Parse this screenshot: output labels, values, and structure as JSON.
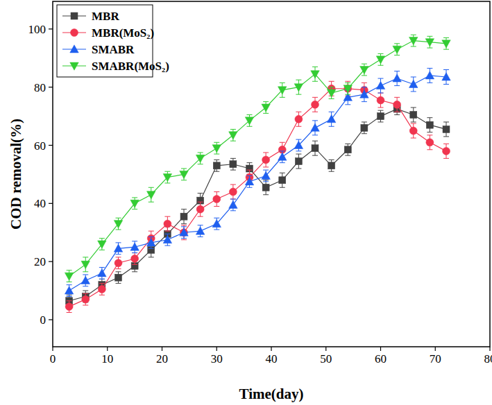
{
  "chart_data": {
    "type": "line",
    "x_label": "Time(day)",
    "y_label": "COD removal(%)",
    "x": [
      3,
      6,
      9,
      12,
      15,
      18,
      21,
      24,
      27,
      30,
      33,
      36,
      39,
      42,
      45,
      48,
      51,
      54,
      57,
      60,
      63,
      66,
      69,
      72
    ],
    "xlim": [
      0,
      80
    ],
    "xticks": [
      0,
      10,
      20,
      30,
      40,
      50,
      60,
      70,
      80
    ],
    "ylim": [
      -9.3,
      109.5
    ],
    "yticks": [
      0,
      20,
      40,
      60,
      80,
      100
    ],
    "grid": false,
    "legend": "upper left",
    "series": [
      {
        "name": "MBR",
        "color": "#404040",
        "marker": "square",
        "values": [
          6.5,
          8,
          12,
          14.5,
          18.5,
          24,
          29.5,
          35.5,
          41,
          53,
          53.5,
          52,
          45.5,
          48,
          54.5,
          59,
          53,
          58.5,
          66,
          70,
          72.5,
          70.5,
          67,
          65.5
        ],
        "errors": [
          2,
          2,
          2,
          2,
          2,
          2.5,
          2.5,
          2.5,
          2.5,
          2,
          2,
          2,
          2.5,
          2.5,
          2.5,
          2.5,
          2,
          2,
          2,
          2,
          2,
          2.5,
          2.5,
          2.5
        ]
      },
      {
        "name": "MBR(MoS₂)",
        "color": "#f0354f",
        "marker": "circle",
        "values": [
          4.5,
          7,
          10.5,
          19.5,
          21,
          28,
          33,
          30,
          38,
          41.5,
          44,
          49,
          55,
          58.5,
          69,
          74,
          79.5,
          79.5,
          79,
          75.5,
          74,
          65,
          61,
          58
        ],
        "errors": [
          2,
          2,
          2,
          2,
          2,
          2.5,
          2.5,
          2.5,
          2.5,
          2.5,
          2.5,
          2.5,
          2.5,
          2.5,
          2.5,
          2.5,
          2.5,
          2.5,
          2.5,
          2.5,
          2.5,
          2.5,
          2.5,
          2.5
        ]
      },
      {
        "name": "SMABR",
        "color": "#1f5fef",
        "marker": "triangle",
        "values": [
          10,
          13.5,
          16,
          24.5,
          25,
          26.5,
          27.5,
          30,
          30.5,
          33,
          39.5,
          47.5,
          49.5,
          56,
          60,
          66,
          69,
          76.5,
          77.5,
          80.5,
          83,
          81,
          84,
          83.5
        ],
        "errors": [
          2,
          2,
          2,
          2,
          2,
          2,
          2,
          2,
          2,
          2,
          2,
          2,
          2,
          2,
          2,
          2.5,
          2.5,
          2.5,
          2.5,
          2.5,
          2.5,
          2.5,
          2.5,
          2.5
        ]
      },
      {
        "name": "SMABR(MoS₂)",
        "color": "#33cc33",
        "marker": "triangle-down",
        "values": [
          15,
          19,
          26,
          33,
          40,
          43,
          49,
          50,
          55.5,
          59,
          63.5,
          68.5,
          73,
          79,
          80,
          84.5,
          78,
          79.5,
          86,
          89.5,
          93,
          96,
          95.5,
          95
        ],
        "errors": [
          2,
          2.5,
          2,
          2,
          2,
          2.5,
          2,
          2,
          2,
          2,
          2,
          2,
          2,
          2.5,
          2.5,
          2.5,
          2,
          2,
          2,
          2,
          2,
          2,
          2,
          2
        ]
      }
    ]
  }
}
